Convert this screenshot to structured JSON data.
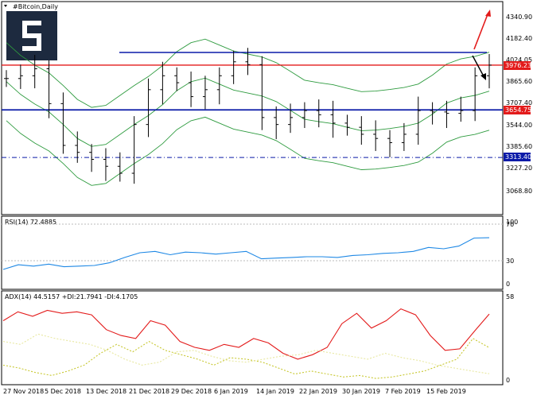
{
  "symbol_title": "#Bitcoin,Daily",
  "colors": {
    "background": "#ffffff",
    "logo": "#1d2a3f",
    "candles": "#000000",
    "bands": "#2e9b3f",
    "rsi": "#1e88e5",
    "adx": "#e31b1b",
    "plus_di": "#c8c832",
    "minus_di": "#e8e8a0",
    "support_resistance": "#0a1aa8",
    "key_level": "#e31b1b",
    "arrow_up": "#e31b1b",
    "arrow_down": "#000000"
  },
  "price_panel": {
    "y_ticks": [
      "4340.90",
      "4182.40",
      "4024.05",
      "3865.60",
      "3707.40",
      "3544.00",
      "3385.60",
      "3227.20",
      "3068.80"
    ],
    "ylim": [
      3068.8,
      4340.9
    ],
    "tags": {
      "red_level": "3976.23",
      "upper_blue": "3654.75",
      "lower_dashdot": "3313.40"
    }
  },
  "x_labels": [
    "27 Nov 2018",
    "5 Dec 2018",
    "13 Dec 2018",
    "21 Dec 2018",
    "29 Dec 2018",
    "6 Jan 2019",
    "14 Jan 2019",
    "22 Jan 2019",
    "30 Jan 2019",
    "7 Feb 2019",
    "15 Feb 2019"
  ],
  "rsi_panel": {
    "label": "RSI(14) 72.4885",
    "y_ticks": [
      "100",
      "70",
      "30",
      "0"
    ]
  },
  "adx_panel": {
    "label": "ADX(14) 44.5157 +DI:21.7941 -DI:4.1705",
    "y_ticks": [
      "58",
      "0"
    ]
  },
  "chart_data": [
    {
      "type": "candlestick",
      "title": "#Bitcoin,Daily",
      "ylim": [
        3068.8,
        4340.9
      ],
      "x": [
        "27 Nov 2018",
        "5 Dec 2018",
        "13 Dec 2018",
        "21 Dec 2018",
        "29 Dec 2018",
        "6 Jan 2019",
        "14 Jan 2019",
        "22 Jan 2019",
        "30 Jan 2019",
        "7 Feb 2019",
        "15 Feb 2019"
      ],
      "close_approx": [
        3880,
        3900,
        3950,
        3700,
        3400,
        3350,
        3300,
        3250,
        3200,
        3550,
        3800,
        3900,
        3850,
        3750,
        3800,
        3900,
        4000,
        3980,
        3600,
        3550,
        3600,
        3650,
        3620,
        3560,
        3530,
        3480,
        3450,
        3420,
        3480,
        3650,
        3640,
        3630,
        3650,
        3900,
        3976
      ],
      "horizontal_levels": [
        3976.23,
        3654.75,
        3313.4
      ]
    },
    {
      "type": "line",
      "title": "RSI(14) 72.4885",
      "ylim": [
        0,
        100
      ],
      "series": [
        {
          "name": "RSI(14)",
          "values": [
            25,
            32,
            30,
            33,
            29,
            30,
            31,
            35,
            43,
            50,
            52,
            47,
            51,
            50,
            48,
            50,
            52,
            41,
            42,
            43,
            44,
            44,
            43,
            46,
            47,
            49,
            50,
            52,
            58,
            56,
            60,
            72,
            72.49
          ]
        }
      ]
    },
    {
      "type": "line",
      "title": "ADX(14) 44.5157 +DI:21.7941 -DI:4.1705",
      "ylim": [
        0,
        58
      ],
      "series": [
        {
          "name": "ADX(14)",
          "values": [
            40,
            46,
            43,
            47,
            45,
            46,
            44,
            34,
            30,
            28,
            40,
            37,
            26,
            22,
            20,
            24,
            22,
            28,
            25,
            18,
            14,
            17,
            22,
            38,
            45,
            35,
            40,
            48,
            44,
            30,
            20,
            21,
            33,
            44.52
          ]
        },
        {
          "name": "+DI",
          "values": [
            10,
            8,
            5,
            3,
            6,
            10,
            18,
            24,
            19,
            26,
            20,
            17,
            14,
            10,
            15,
            14,
            12,
            8,
            4,
            6,
            4,
            2,
            3,
            1,
            2,
            4,
            6,
            10,
            14,
            28,
            21.79
          ]
        },
        {
          "name": "-DI",
          "values": [
            26,
            24,
            31,
            28,
            26,
            24,
            20,
            14,
            10,
            12,
            19,
            20,
            16,
            13,
            12,
            14,
            16,
            17,
            20,
            18,
            16,
            14,
            18,
            15,
            13,
            10,
            8,
            6,
            4.17
          ]
        }
      ]
    }
  ]
}
